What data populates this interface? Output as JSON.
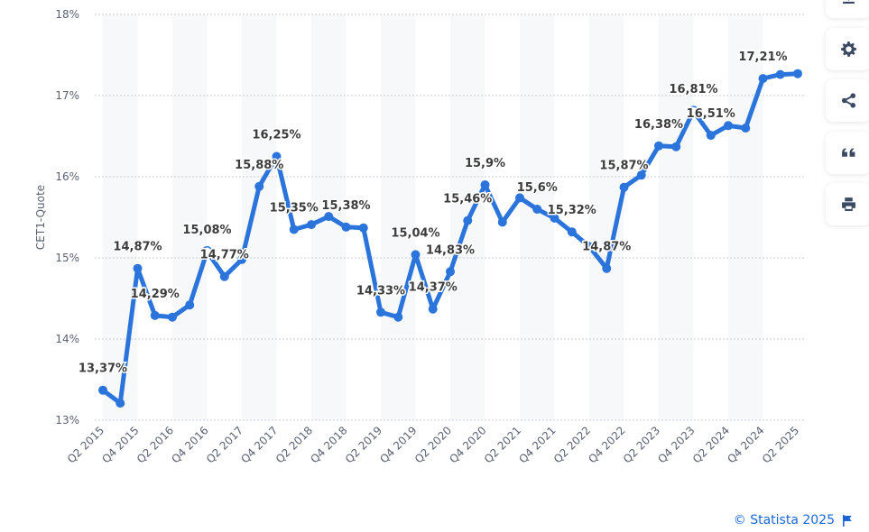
{
  "chart_data": {
    "type": "line",
    "title": "",
    "xlabel": "",
    "ylabel": "CET1-Quote",
    "ylim": [
      13,
      18
    ],
    "yticks": [
      "13%",
      "14%",
      "15%",
      "16%",
      "17%",
      "18%"
    ],
    "grid": true,
    "legend": "none",
    "line_color": "#2a74db",
    "categories": [
      "Q2 2015",
      "Q3 2015",
      "Q4 2015",
      "Q1 2016",
      "Q2 2016",
      "Q3 2016",
      "Q4 2016",
      "Q1 2017",
      "Q2 2017",
      "Q3 2017",
      "Q4 2017",
      "Q1 2018",
      "Q2 2018",
      "Q3 2018",
      "Q4 2018",
      "Q1 2019",
      "Q2 2019",
      "Q3 2019",
      "Q4 2019",
      "Q1 2020",
      "Q2 2020",
      "Q3 2020",
      "Q4 2020",
      "Q1 2021",
      "Q2 2021",
      "Q3 2021",
      "Q4 2021",
      "Q1 2022",
      "Q2 2022",
      "Q3 2022",
      "Q4 2022",
      "Q1 2023",
      "Q2 2023",
      "Q3 2023",
      "Q4 2023",
      "Q1 2024",
      "Q2 2024",
      "Q3 2024",
      "Q4 2024",
      "Q1 2025",
      "Q2 2025"
    ],
    "xtick_labels": [
      "Q2 2015",
      "Q4 2015",
      "Q2 2016",
      "Q4 2016",
      "Q2 2017",
      "Q4 2017",
      "Q2 2018",
      "Q4 2018",
      "Q2 2019",
      "Q4 2019",
      "Q2 2020",
      "Q4 2020",
      "Q2 2021",
      "Q4 2021",
      "Q2 2022",
      "Q4 2022",
      "Q2 2023",
      "Q4 2023",
      "Q2 2024",
      "Q4 2024",
      "Q2 2025"
    ],
    "values": [
      13.37,
      13.21,
      14.87,
      14.29,
      14.27,
      14.42,
      15.08,
      14.77,
      14.98,
      15.88,
      16.25,
      15.35,
      15.41,
      15.51,
      15.38,
      15.37,
      14.33,
      14.27,
      15.04,
      14.37,
      14.83,
      15.46,
      15.9,
      15.44,
      15.74,
      15.6,
      15.49,
      15.32,
      15.14,
      14.87,
      15.87,
      16.02,
      16.38,
      16.37,
      16.81,
      16.51,
      16.63,
      16.6,
      17.21,
      17.26,
      17.27
    ],
    "data_labels": [
      "13,37%",
      "",
      "14,87%",
      "14,29%",
      "",
      "",
      "15,08%",
      "14,77%",
      "",
      "15,88%",
      "16,25%",
      "15,35%",
      "",
      "",
      "15,38%",
      "",
      "14,33%",
      "",
      "15,04%",
      "14,37%",
      "14,83%",
      "15,46%",
      "15,9%",
      "",
      "",
      "15,6%",
      "",
      "15,32%",
      "",
      "14,87%",
      "15,87%",
      "",
      "16,38%",
      "",
      "16,81%",
      "16,51%",
      "",
      "",
      "17,21%",
      "",
      ""
    ]
  },
  "toolbar": {
    "buttons": [
      {
        "name": "download",
        "icon": "download-icon"
      },
      {
        "name": "settings",
        "icon": "gear-icon"
      },
      {
        "name": "share",
        "icon": "share-icon"
      },
      {
        "name": "cite",
        "icon": "quote-icon"
      },
      {
        "name": "print",
        "icon": "print-icon"
      }
    ]
  },
  "footer": {
    "credit": "© Statista 2025"
  }
}
